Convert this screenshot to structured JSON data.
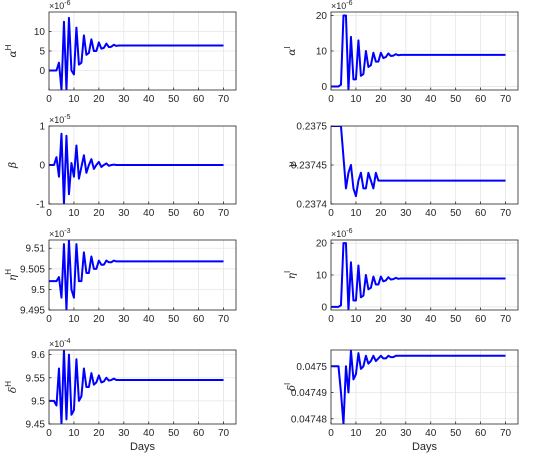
{
  "chart_data": [
    {
      "type": "line",
      "ylabel": "α",
      "ylabel_sup": "H",
      "exponent": "×10",
      "exponent_power": "-6",
      "xlabel": "",
      "xlim": [
        0,
        75
      ],
      "ylim": [
        -5,
        15
      ],
      "xticks": [
        "0",
        "10",
        "20",
        "30",
        "40",
        "50",
        "60",
        "70"
      ],
      "yticks": [
        {
          "v": 0,
          "label": "0"
        },
        {
          "v": 5,
          "label": "5"
        },
        {
          "v": 10,
          "label": "10"
        }
      ],
      "grid": true,
      "series": [
        {
          "x": [
            0,
            2,
            3,
            4,
            5,
            6,
            7,
            8,
            9,
            10,
            11,
            12,
            13,
            14,
            15,
            16,
            17,
            18,
            19,
            20,
            21,
            22,
            23,
            24,
            25,
            26,
            27,
            28,
            30,
            35,
            40,
            50,
            60,
            70
          ],
          "y": [
            0,
            0,
            0,
            2,
            -5,
            12.5,
            -5,
            13.5,
            0,
            -1,
            11,
            1.5,
            2,
            9,
            4,
            4.5,
            8,
            5,
            5,
            7.2,
            5.6,
            5.8,
            6.9,
            6,
            6.1,
            6.6,
            6.3,
            6.4,
            6.4,
            6.4,
            6.4,
            6.4,
            6.4,
            6.4
          ]
        }
      ]
    },
    {
      "type": "line",
      "ylabel": "α",
      "ylabel_sup": "I",
      "exponent": "×10",
      "exponent_power": "-6",
      "xlabel": "",
      "xlim": [
        0,
        75
      ],
      "ylim": [
        -1,
        21
      ],
      "xticks": [
        "0",
        "10",
        "20",
        "30",
        "40",
        "50",
        "60",
        "70"
      ],
      "yticks": [
        {
          "v": 0,
          "label": "0"
        },
        {
          "v": 10,
          "label": "10"
        },
        {
          "v": 20,
          "label": "20"
        }
      ],
      "grid": true,
      "series": [
        {
          "x": [
            0,
            2,
            3,
            4,
            5,
            6,
            7,
            8,
            9,
            10,
            11,
            12,
            13,
            14,
            15,
            16,
            17,
            18,
            19,
            20,
            21,
            22,
            23,
            24,
            25,
            26,
            27,
            28,
            30,
            35,
            40,
            50,
            60,
            70
          ],
          "y": [
            0,
            0,
            0,
            0.5,
            20,
            20,
            -1,
            14,
            2,
            2,
            13,
            3,
            3.5,
            10,
            5.5,
            6,
            9.5,
            7,
            7,
            9.5,
            8,
            8.3,
            9.3,
            8.6,
            8.7,
            9.1,
            8.8,
            8.9,
            8.9,
            8.9,
            8.9,
            8.9,
            8.9,
            8.9
          ]
        }
      ]
    },
    {
      "type": "line",
      "ylabel": "β",
      "ylabel_sup": "",
      "exponent": "×10",
      "exponent_power": "-5",
      "xlabel": "",
      "xlim": [
        0,
        75
      ],
      "ylim": [
        -1,
        1
      ],
      "xticks": [
        "0",
        "10",
        "20",
        "30",
        "40",
        "50",
        "60",
        "70"
      ],
      "yticks": [
        {
          "v": -1,
          "label": "-1"
        },
        {
          "v": 0,
          "label": "0"
        },
        {
          "v": 1,
          "label": "1"
        }
      ],
      "grid": true,
      "series": [
        {
          "x": [
            0,
            2,
            3,
            4,
            5,
            6,
            7,
            8,
            9,
            10,
            11,
            12,
            13,
            14,
            15,
            16,
            17,
            18,
            19,
            20,
            21,
            22,
            23,
            24,
            25,
            26,
            27,
            28,
            30,
            35,
            40,
            50,
            60,
            70
          ],
          "y": [
            0,
            0,
            0.2,
            -0.3,
            0.8,
            -1,
            0.75,
            -0.75,
            0.05,
            -0.3,
            0.5,
            -0.35,
            -0.05,
            0.25,
            -0.2,
            0,
            0.15,
            -0.1,
            0,
            0.08,
            -0.05,
            0,
            0.04,
            -0.02,
            0,
            0.01,
            0,
            0,
            0,
            0,
            0,
            0,
            0,
            0
          ]
        }
      ]
    },
    {
      "type": "line",
      "ylabel": "γ",
      "ylabel_sup": "",
      "exponent": "",
      "exponent_power": "",
      "xlabel": "",
      "xlim": [
        0,
        75
      ],
      "ylim": [
        0.2374,
        0.2375
      ],
      "xticks": [
        "0",
        "10",
        "20",
        "30",
        "40",
        "50",
        "60",
        "70"
      ],
      "yticks": [
        {
          "v": 0.2374,
          "label": "0.2374"
        },
        {
          "v": 0.23745,
          "label": "0.23745"
        },
        {
          "v": 0.2375,
          "label": "0.2375"
        }
      ],
      "grid": true,
      "series": [
        {
          "x": [
            0,
            2,
            3,
            4,
            5,
            6,
            7,
            8,
            9,
            10,
            11,
            12,
            13,
            14,
            15,
            16,
            17,
            18,
            19,
            20,
            22,
            24,
            26,
            28,
            30,
            40,
            50,
            60,
            70
          ],
          "y": [
            0.2375,
            0.2375,
            0.2375,
            0.2375,
            0.23746,
            0.23742,
            0.23744,
            0.23745,
            0.23742,
            0.23741,
            0.23743,
            0.23744,
            0.23742,
            0.23742,
            0.23744,
            0.23743,
            0.23742,
            0.23744,
            0.23743,
            0.23743,
            0.23743,
            0.23743,
            0.23743,
            0.23743,
            0.23743,
            0.23743,
            0.23743,
            0.23743,
            0.23743
          ]
        }
      ]
    },
    {
      "type": "line",
      "ylabel": "η",
      "ylabel_sup": "H",
      "exponent": "×10",
      "exponent_power": "-3",
      "xlabel": "",
      "xlim": [
        0,
        75
      ],
      "ylim": [
        9.495,
        9.512
      ],
      "xticks": [
        "0",
        "10",
        "20",
        "30",
        "40",
        "50",
        "60",
        "70"
      ],
      "yticks": [
        {
          "v": 9.495,
          "label": "9.495"
        },
        {
          "v": 9.5,
          "label": "9.5"
        },
        {
          "v": 9.505,
          "label": "9.505"
        },
        {
          "v": 9.51,
          "label": "9.51"
        }
      ],
      "grid": true,
      "series": [
        {
          "x": [
            0,
            2,
            3,
            4,
            5,
            6,
            7,
            8,
            9,
            10,
            11,
            12,
            13,
            14,
            15,
            16,
            17,
            18,
            19,
            20,
            21,
            22,
            23,
            24,
            25,
            26,
            27,
            28,
            30,
            35,
            40,
            50,
            60,
            70
          ],
          "y": [
            9.502,
            9.502,
            9.502,
            9.503,
            9.498,
            9.511,
            9.495,
            9.512,
            9.5,
            9.498,
            9.511,
            9.502,
            9.502,
            9.509,
            9.504,
            9.504,
            9.508,
            9.505,
            9.505,
            9.507,
            9.506,
            9.506,
            9.507,
            9.5066,
            9.5066,
            9.507,
            9.5068,
            9.5068,
            9.5068,
            9.5068,
            9.5068,
            9.5068,
            9.5068,
            9.5068
          ]
        }
      ]
    },
    {
      "type": "line",
      "ylabel": "η",
      "ylabel_sup": "I",
      "exponent": "×10",
      "exponent_power": "-6",
      "xlabel": "",
      "xlim": [
        0,
        75
      ],
      "ylim": [
        -1,
        21
      ],
      "xticks": [
        "0",
        "10",
        "20",
        "30",
        "40",
        "50",
        "60",
        "70"
      ],
      "yticks": [
        {
          "v": 0,
          "label": "0"
        },
        {
          "v": 10,
          "label": "10"
        },
        {
          "v": 20,
          "label": "20"
        }
      ],
      "grid": true,
      "series": [
        {
          "x": [
            0,
            2,
            3,
            4,
            5,
            6,
            7,
            8,
            9,
            10,
            11,
            12,
            13,
            14,
            15,
            16,
            17,
            18,
            19,
            20,
            21,
            22,
            23,
            24,
            25,
            26,
            27,
            28,
            30,
            35,
            40,
            50,
            60,
            70
          ],
          "y": [
            0,
            0,
            0,
            0.5,
            20,
            20,
            -1,
            14,
            2,
            2,
            13,
            3,
            3.5,
            10,
            5.5,
            6,
            9.5,
            7,
            7,
            9.5,
            8,
            8.3,
            9.3,
            8.6,
            8.7,
            9.1,
            8.8,
            8.9,
            8.9,
            8.9,
            8.9,
            8.9,
            8.9,
            8.9
          ]
        }
      ]
    },
    {
      "type": "line",
      "ylabel": "δ",
      "ylabel_sup": "H",
      "exponent": "×10",
      "exponent_power": "-4",
      "xlabel": "Days",
      "xlim": [
        0,
        75
      ],
      "ylim": [
        9.45,
        9.61
      ],
      "xticks": [
        "0",
        "10",
        "20",
        "30",
        "40",
        "50",
        "60",
        "70"
      ],
      "yticks": [
        {
          "v": 9.45,
          "label": "9.45"
        },
        {
          "v": 9.5,
          "label": "9.5"
        },
        {
          "v": 9.55,
          "label": "9.55"
        },
        {
          "v": 9.6,
          "label": "9.6"
        }
      ],
      "grid": true,
      "series": [
        {
          "x": [
            0,
            2,
            3,
            4,
            5,
            6,
            7,
            8,
            9,
            10,
            11,
            12,
            13,
            14,
            15,
            16,
            17,
            18,
            19,
            20,
            21,
            22,
            23,
            24,
            25,
            26,
            27,
            28,
            30,
            35,
            40,
            50,
            60,
            70
          ],
          "y": [
            9.5,
            9.5,
            9.49,
            9.57,
            9.45,
            9.61,
            9.46,
            9.6,
            9.47,
            9.48,
            9.59,
            9.5,
            9.51,
            9.57,
            9.53,
            9.53,
            9.56,
            9.535,
            9.54,
            9.555,
            9.54,
            9.542,
            9.55,
            9.544,
            9.545,
            9.548,
            9.545,
            9.545,
            9.545,
            9.545,
            9.545,
            9.545,
            9.545,
            9.545
          ]
        }
      ]
    },
    {
      "type": "line",
      "ylabel": "δ",
      "ylabel_sup": "I",
      "exponent": "",
      "exponent_power": "",
      "xlabel": "Days",
      "xlim": [
        0,
        75
      ],
      "ylim": [
        0.047478,
        0.0475062
      ],
      "xticks": [
        "0",
        "10",
        "20",
        "30",
        "40",
        "50",
        "60",
        "70"
      ],
      "yticks": [
        {
          "v": 0.04748,
          "label": "0.04748"
        },
        {
          "v": 0.04749,
          "label": "0.04749"
        },
        {
          "v": 0.0475,
          "label": "0.0475"
        }
      ],
      "grid": true,
      "series": [
        {
          "x": [
            0,
            2,
            3,
            4,
            5,
            6,
            7,
            8,
            9,
            10,
            11,
            12,
            13,
            14,
            15,
            16,
            17,
            18,
            19,
            20,
            21,
            22,
            23,
            24,
            25,
            26,
            27,
            28,
            30,
            35,
            40,
            50,
            60,
            70
          ],
          "y": [
            0.0475,
            0.0475,
            0.0475,
            0.04749,
            0.047478,
            0.0475,
            0.04749,
            0.047506,
            0.047495,
            0.047497,
            0.047505,
            0.047499,
            0.0475,
            0.047504,
            0.047501,
            0.047502,
            0.047504,
            0.047502,
            0.047503,
            0.047504,
            0.047503,
            0.047503,
            0.047504,
            0.0475035,
            0.0475035,
            0.047504,
            0.047504,
            0.047504,
            0.047504,
            0.047504,
            0.047504,
            0.047504,
            0.047504,
            0.047504
          ]
        }
      ]
    }
  ]
}
